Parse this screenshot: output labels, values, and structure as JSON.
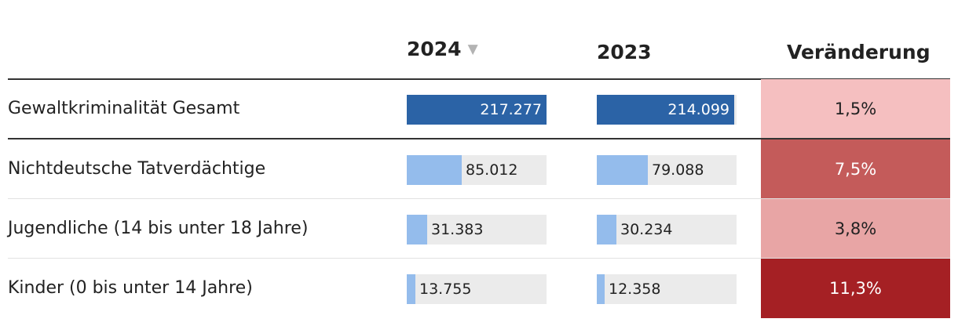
{
  "chart_data": {
    "type": "table",
    "columns": {
      "col_2024": "2024",
      "col_2023": "2023",
      "col_change": "Veränderung"
    },
    "sort_indicator": "▼",
    "max_value": 217277,
    "rows": [
      {
        "label": "Gewaltkriminalität Gesamt",
        "v2024": 217277,
        "v2024_text": "217.277",
        "v2023": 214099,
        "v2023_text": "214.099",
        "change": "1,5%",
        "change_color": "#f5bfc0",
        "change_text_color": "#222222",
        "bar_color": "#2b63a6",
        "total": true
      },
      {
        "label": "Nichtdeutsche Tatverdächtige",
        "v2024": 85012,
        "v2024_text": "85.012",
        "v2023": 79088,
        "v2023_text": "79.088",
        "change": "7,5%",
        "change_color": "#c45b5a",
        "change_text_color": "#ffffff",
        "bar_color": "#94bcec",
        "total": false
      },
      {
        "label": "Jugendliche (14 bis unter 18 Jahre)",
        "v2024": 31383,
        "v2024_text": "31.383",
        "v2023": 30234,
        "v2023_text": "30.234",
        "change": "3,8%",
        "change_color": "#e8a5a5",
        "change_text_color": "#222222",
        "bar_color": "#94bcec",
        "total": false
      },
      {
        "label": "Kinder (0 bis unter 14 Jahre)",
        "v2024": 13755,
        "v2024_text": "13.755",
        "v2023": 12358,
        "v2023_text": "12.358",
        "change": "11,3%",
        "change_color": "#a52024",
        "change_text_color": "#ffffff",
        "bar_color": "#94bcec",
        "total": false
      }
    ]
  }
}
